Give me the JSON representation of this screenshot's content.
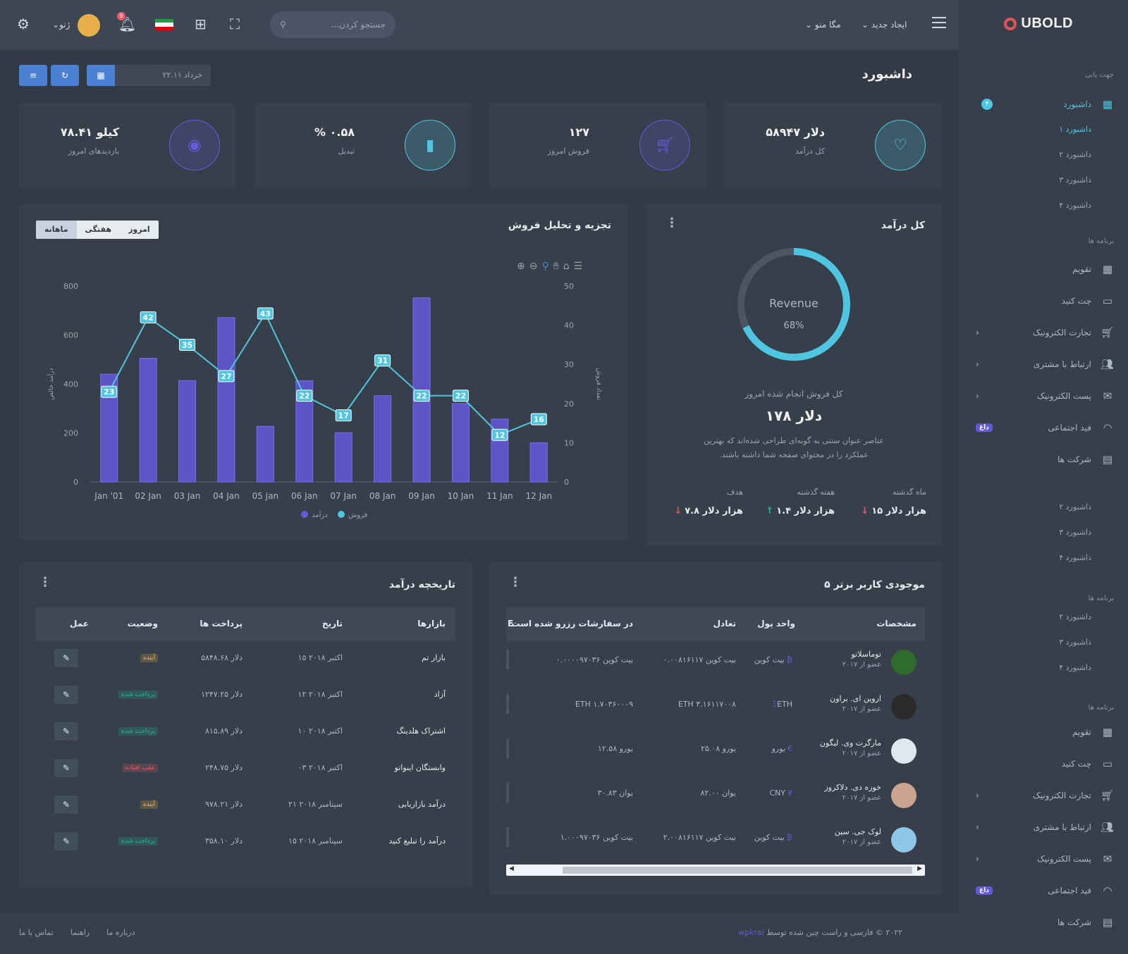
{
  "sidebar": {
    "brand": "UBOLD",
    "section_nav": "جهت یابی",
    "dashboard": "داشبورد",
    "dashboard_badge": "۴",
    "dashboard_subs": [
      "داشبورد ۱",
      "داشبورد ۲",
      "داشبورد ۳",
      "داشبورد ۴"
    ],
    "section_apps": "برنامه ها",
    "apps": [
      {
        "label": "تقویم",
        "icon": "calendar-icon"
      },
      {
        "label": "چت کنید",
        "icon": "chat-icon"
      },
      {
        "label": "تجارت الکترونیک",
        "icon": "cart-icon",
        "arrow": true
      },
      {
        "label": "ارتباط با مشتری",
        "icon": "users-icon",
        "arrow": true
      },
      {
        "label": "پست الکترونیک",
        "icon": "mail-icon",
        "arrow": true
      },
      {
        "label": "فید اجتماعی",
        "icon": "rss-icon",
        "badge": "داغ"
      },
      {
        "label": "شرکت ها",
        "icon": "building-icon"
      }
    ],
    "extra_subs_1": [
      "داشبورد ۲",
      "داشبورد ۳",
      "داشبورد ۴"
    ],
    "section_apps_2": "برنامه ها",
    "extra_subs_2": [
      "داشبورد ۲",
      "داشبورد ۳",
      "داشبورد ۴"
    ],
    "section_apps_3": "برنامه ها"
  },
  "topbar": {
    "create_new": "ایجاد جدید",
    "mega_menu": "مگا منو",
    "search_placeholder": "جستجو کردن...",
    "user_name": "ژنو",
    "notification_count": "9"
  },
  "page": {
    "title": "داشبورد",
    "date_range": "خرداد ۲۲.۱۱"
  },
  "stats": [
    {
      "value": "۵۸۹۴۷ دلار",
      "label": "کل درآمد",
      "icon": "heart-icon",
      "color": "#4fc6e1"
    },
    {
      "value": "۱۲۷",
      "label": "فروش امروز",
      "icon": "cart-icon",
      "color": "#6658dd"
    },
    {
      "value": "% ۰.۵۸",
      "label": "تبدیل",
      "icon": "bar-chart-icon",
      "color": "#4fc6e1"
    },
    {
      "value": "۷۸.۴۱ کیلو",
      "label": "بازدیدهای امروز",
      "icon": "eye-icon",
      "color": "#6658dd"
    }
  ],
  "revenue_card": {
    "title": "کل درآمد",
    "donut_label": "Revenue",
    "donut_percent": 68,
    "donut_percent_text": "68%",
    "sales_label": "کل فروش انجام شده امروز",
    "sales_value": "دلار ۱۷۸",
    "description_1": "عناصر عنوان سنتی به گونه‌ای طراحی شده‌اند که بهترین",
    "description_2": ".عملکرد را در محتوای صفحه شما داشته باشند",
    "targets": [
      {
        "label": "ماه گذشته",
        "value": "هزار دلار ۱۵",
        "trend": "down"
      },
      {
        "label": "هفته گذشته",
        "value": "هزار دلار ۱.۴",
        "trend": "up"
      },
      {
        "label": "هدف",
        "value": "هزار دلار ۷.۸",
        "trend": "down"
      }
    ]
  },
  "sales_card": {
    "title": "تجزیه و تحلیل فروش",
    "tabs": [
      "امروز",
      "هفتگی",
      "ماهانه"
    ],
    "selected_tab": "ماهانه"
  },
  "chart_data": {
    "type": "bar",
    "categories": [
      "Jan '01",
      "02 Jan",
      "03 Jan",
      "04 Jan",
      "05 Jan",
      "06 Jan",
      "07 Jan",
      "08 Jan",
      "09 Jan",
      "10 Jan",
      "11 Jan",
      "12 Jan"
    ],
    "series": [
      {
        "name": "درآمد",
        "type": "bar",
        "axis": "left",
        "color": "#6658dd",
        "values": [
          440,
          505,
          414,
          671,
          227,
          413,
          201,
          352,
          752,
          320,
          257,
          160
        ]
      },
      {
        "name": "فروش",
        "type": "line",
        "axis": "right",
        "color": "#4fc6e1",
        "values": [
          23,
          42,
          35,
          27,
          43,
          22,
          17,
          31,
          22,
          22,
          12,
          16
        ]
      }
    ],
    "ylabel_left": "درآمد خالص",
    "ylabel_right": "تعداد فروش",
    "ylim_left": [
      0,
      800
    ],
    "yticks_left": [
      0,
      200,
      400,
      600,
      800
    ],
    "ylim_right": [
      0,
      50
    ],
    "yticks_right": [
      0,
      10,
      20,
      30,
      40,
      50
    ],
    "legend": [
      "درآمد",
      "فروش"
    ],
    "legend_position": "bottom"
  },
  "top_users": {
    "title": "۵ موجودی کاربر برتر",
    "headers": [
      "مشخصات",
      "واحد پول",
      "تعادل",
      "در سفارشات رزرو شده است",
      "E"
    ],
    "rows": [
      {
        "name": "توماسلاتو",
        "since": "عضو از ۲۰۱۷",
        "currency": "بیت کوین",
        "currency_sym": "₿",
        "balance": "۰.۰۰۸۱۶۱۱۷ بیت کوین",
        "reserved": "۰.۰۰۰۰۹۷۰۳۶ بیت کوین",
        "avatar_color": "#2f6a2f"
      },
      {
        "name": "اروین ای. براون",
        "since": "عضو از ۲۰۱۷",
        "currency": "ETH",
        "currency_sym": "Ξ",
        "balance": "ETH ۳.۱۶۱۱۷۰۰۸",
        "reserved": "ETH ۱.۷۰۳۶۰۰۰۹",
        "avatar_color": "#2b2b2b"
      },
      {
        "name": "مارگرت وی. لیگون",
        "since": "عضو از ۲۰۱۷",
        "currency": "یورو",
        "currency_sym": "€",
        "balance": "۲۵.۰۸ یورو",
        "reserved": "۱۲.۵۸ یورو",
        "avatar_color": "#dfe6ee"
      },
      {
        "name": "خوزه دی. دلاکروز",
        "since": "عضو از ۲۰۱۷",
        "currency": "CNY",
        "currency_sym": "¥",
        "balance": "۸۲.۰۰ یوان",
        "reserved": "۳۰.۸۳ یوان",
        "avatar_color": "#c9a48f"
      },
      {
        "name": "لوک جی. سین",
        "since": "عضو از ۲۰۱۷",
        "currency": "بیت کوین",
        "currency_sym": "₿",
        "balance": "۲.۰۰۸۱۶۱۱۷ بیت کوین",
        "reserved": "۱.۰۰۰۹۷۰۳۶ بیت کوین",
        "avatar_color": "#8fc7e8"
      }
    ]
  },
  "revenue_history": {
    "title": "تاریخچه درآمد",
    "headers": [
      "بازارها",
      "تاریخ",
      "پرداخت ها",
      "وضعیت",
      "عمل"
    ],
    "rows": [
      {
        "market": "بازار تم",
        "date": "۱۵ اکتبر ۲۰۱۸",
        "payment": "۵۸۴۸.۶۸ دلار",
        "status": "آینده",
        "status_type": "upcoming"
      },
      {
        "market": "آزاد",
        "date": "۱۲ اکتبر ۲۰۱۸",
        "payment": "۱۲۴۷.۲۵ دلار",
        "status": "پرداخت شده",
        "status_type": "paid"
      },
      {
        "market": "اشتراک هلدینگ",
        "date": "۱۰ اکتبر ۲۰۱۸",
        "payment": "۸۱۵.۸۹ دلار",
        "status": "پرداخت شده",
        "status_type": "paid"
      },
      {
        "market": "وابستگان اینواتو",
        "date": "۰۳ اکتبر ۲۰۱۸",
        "payment": "۲۴۸.۷۵ دلار",
        "status": "عقب افتاده",
        "status_type": "overdue"
      },
      {
        "market": "درآمد بازاریابی",
        "date": "۲۱ سپتامبر ۲۰۱۸",
        "payment": "۹۷۸.۲۱ دلار",
        "status": "آینده",
        "status_type": "upcoming"
      },
      {
        "market": "درآمد را تبلیغ کنید",
        "date": "۱۵ سپتامبر ۲۰۱۸",
        "payment": "۳۵۸.۱۰ دلار",
        "status": "پرداخت شده",
        "status_type": "paid"
      }
    ]
  },
  "footer": {
    "copyright": "۲۰۲۲ © فارسی و راست چین شده توسط",
    "author": "wpkral",
    "links": [
      "درباره ما",
      "راهنما",
      "تماس با ما"
    ]
  }
}
